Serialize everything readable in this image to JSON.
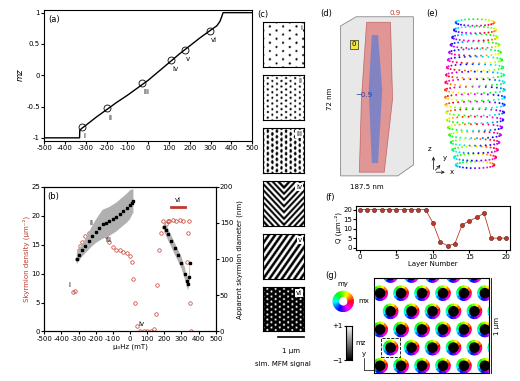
{
  "chart_data": [
    {
      "type": "line",
      "panel_label": "(a)",
      "ylabel": "mz",
      "color": "#000000",
      "x": [
        -500,
        -330,
        -329,
        -320,
        -300,
        -250,
        -200,
        -150,
        -100,
        -50,
        0,
        50,
        100,
        150,
        200,
        250,
        300,
        330,
        345,
        355,
        360,
        500
      ],
      "values": [
        -1,
        -1,
        -0.88,
        -0.85,
        -0.8,
        -0.67,
        -0.55,
        -0.43,
        -0.32,
        -0.2,
        -0.08,
        0.06,
        0.2,
        0.34,
        0.47,
        0.6,
        0.72,
        0.79,
        0.86,
        0.95,
        1,
        1
      ],
      "xlim": [
        -500,
        500
      ],
      "xticks": [
        -500,
        -400,
        -300,
        -200,
        -100,
        0,
        100,
        200,
        300,
        400,
        500
      ],
      "ylim": [
        -1.05,
        1.05
      ],
      "yticks": [
        -1,
        -0.5,
        0,
        0.5,
        1
      ],
      "annotations": [
        {
          "text": "i",
          "x": -320,
          "y": -0.83
        },
        {
          "text": "ii",
          "x": -200,
          "y": -0.53
        },
        {
          "text": "iii",
          "x": -30,
          "y": -0.12
        },
        {
          "text": "iv",
          "x": 110,
          "y": 0.24
        },
        {
          "text": "v",
          "x": 175,
          "y": 0.41
        },
        {
          "text": "vi",
          "x": 295,
          "y": 0.71
        }
      ]
    },
    {
      "type": "scatter",
      "panel_label": "(b)",
      "xlabel": "μ₀Hz (mT)",
      "ylabel": "Skyrmion density (μm⁻²)",
      "y2label": "Apparent skyrmion diameter (nm)",
      "series": [
        {
          "color": "#c0392b",
          "marker": "open_circle",
          "x": [
            -330,
            -320,
            -310,
            -300,
            -290,
            -280,
            -260,
            -240,
            -220,
            -200,
            -180,
            -160,
            -140,
            -120,
            -100,
            -80,
            -60,
            -40,
            -20,
            0,
            10,
            20,
            30,
            40,
            60,
            80,
            100,
            120,
            140,
            150,
            160,
            170,
            180,
            190,
            200,
            210,
            220,
            230,
            250,
            270,
            290,
            310,
            330,
            335,
            340,
            345,
            350,
            355
          ],
          "values": [
            6.8,
            7,
            12.5,
            14,
            14.8,
            15.5,
            16.5,
            17,
            17.3,
            17.5,
            17.3,
            17,
            16.5,
            15.5,
            14.5,
            14,
            14,
            13.8,
            13.5,
            13,
            12,
            9,
            5,
            1,
            0,
            0,
            0,
            0,
            0.5,
            3,
            8,
            14,
            17,
            19,
            18,
            18.5,
            19,
            19,
            19.2,
            19,
            19.3,
            19,
            12,
            9,
            17,
            19,
            5,
            0
          ]
        },
        {
          "axis": "y2",
          "color": "#000000",
          "marker": "square",
          "x": [
            -310,
            -300,
            -280,
            -260,
            -240,
            -220,
            -200,
            -180,
            -160,
            -140,
            -120,
            -100,
            -80,
            -60,
            -40,
            -20,
            0,
            10,
            20,
            110,
            200,
            210,
            220,
            240,
            260,
            280,
            300,
            320,
            330,
            340,
            345,
            350
          ],
          "values": [
            100,
            105,
            112,
            118,
            125,
            132,
            138,
            143,
            148,
            150,
            152,
            155,
            158,
            162,
            166,
            170,
            175,
            178,
            180,
            null,
            145,
            140,
            135,
            125,
            115,
            105,
            95,
            80,
            70,
            65,
            75,
            95
          ],
          "errors": [
            8,
            8,
            9,
            10,
            12,
            14,
            16,
            18,
            20,
            20,
            20,
            20,
            20,
            20,
            20,
            20,
            20,
            18,
            16,
            null,
            8,
            8,
            8,
            8,
            8,
            8,
            8,
            8,
            8,
            8,
            8,
            8
          ]
        }
      ],
      "xlim": [
        -500,
        500
      ],
      "xticks": [
        -500,
        -400,
        -300,
        -200,
        -100,
        0,
        100,
        200,
        300,
        400,
        500
      ],
      "ylim": [
        0,
        25
      ],
      "yticks": [
        0,
        5,
        10,
        15,
        20,
        25
      ],
      "y2lim": [
        0,
        200
      ],
      "y2ticks": [
        0,
        50,
        100,
        150,
        200
      ],
      "annotations": [
        {
          "text": "i",
          "x": -330,
          "y": 6.8
        },
        {
          "text": "ii",
          "x": -200,
          "y": 17.5
        },
        {
          "text": "iii",
          "x": -90,
          "y": 14.5
        },
        {
          "text": "iv",
          "x": 100,
          "y": 0
        }
      ],
      "ranges": [
        {
          "text": "vi",
          "x": [
            240,
            320
          ],
          "y": 21.5,
          "color": "#c0392b"
        }
      ]
    },
    {
      "type": "line",
      "panel_label": "(f)",
      "xlabel": "Layer Number",
      "ylabel": "Q (μm⁻²)",
      "color": "#c0392b",
      "marker": "circle",
      "x": [
        0,
        1,
        2,
        3,
        4,
        5,
        6,
        7,
        8,
        9,
        10,
        11,
        12,
        13,
        14,
        15,
        16,
        17,
        18,
        19,
        20
      ],
      "values": [
        20,
        20,
        20,
        20,
        20,
        20,
        20,
        20,
        20,
        20,
        13,
        3,
        1,
        2,
        12,
        14,
        16,
        18,
        5,
        5,
        5
      ],
      "xlim": [
        -0.5,
        20.5
      ],
      "xticks": [
        0,
        5,
        10,
        15,
        20
      ],
      "ylim": [
        -1,
        22
      ],
      "yticks": [
        0,
        5,
        10,
        15,
        20
      ]
    }
  ],
  "mfm": {
    "panel_label": "(c)",
    "labels": [
      "i",
      "ii",
      "iii",
      "iv",
      "v",
      "vi"
    ],
    "scale": "1 μm",
    "caption": "sim. MFM signal"
  },
  "isosurface": {
    "panel_label": "(d)",
    "top": "0.9",
    "middle": "0",
    "bottom": "−0.9",
    "height": "72 nm",
    "width": "187.5 nm"
  },
  "tube": {
    "panel_label": "(e)",
    "axes": [
      "x",
      "y",
      "z"
    ]
  },
  "lattice": {
    "panel_label": "(g)",
    "scale": "1 μm",
    "wheel": [
      "mx",
      "my"
    ],
    "axes": [
      "x",
      "y"
    ],
    "colorbar": {
      "label": "mz",
      "range": [
        -1,
        1
      ],
      "ticks": [
        {
          "value": 1,
          "label": "+1"
        },
        {
          "value": -1,
          "label": "−1"
        }
      ]
    }
  }
}
